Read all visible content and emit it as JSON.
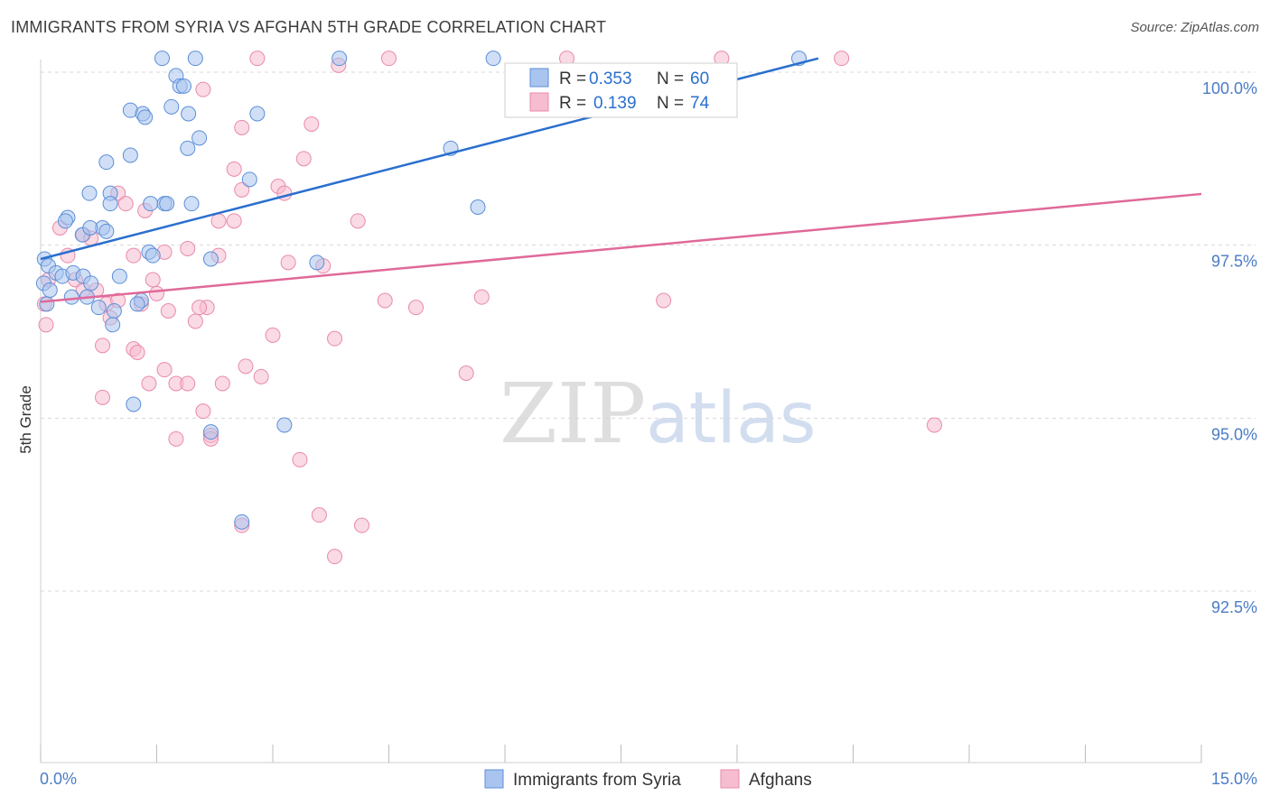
{
  "header": {
    "title": "IMMIGRANTS FROM SYRIA VS AFGHAN 5TH GRADE CORRELATION CHART",
    "source": "Source: ZipAtlas.com"
  },
  "watermark": {
    "zip": "ZIP",
    "atlas": "atlas"
  },
  "colors": {
    "syria_fill": "#a9c4ee",
    "syria_stroke": "#5b8fd8",
    "syria_line": "#2a6fcf",
    "afghan_fill": "#f6bcd0",
    "afghan_stroke": "#e98aab",
    "afghan_line": "#e0699a",
    "grid": "#d8d8d8",
    "tick_text": "#4a7cc7"
  },
  "legend": {
    "r_label": "R = ",
    "n_label": "N = ",
    "entries": [
      {
        "r": "0.353",
        "n": "60"
      },
      {
        "r": "0.139",
        "n": "74"
      }
    ]
  },
  "chart_data": {
    "type": "scatter",
    "title": "IMMIGRANTS FROM SYRIA VS AFGHAN 5TH GRADE CORRELATION CHART",
    "xlabel": "",
    "ylabel": "5th Grade",
    "xlim": [
      0,
      15
    ],
    "ylim": [
      90.0,
      100.25
    ],
    "x_tick_labels": [
      "0.0%",
      "15.0%"
    ],
    "y_ticks": [
      92.5,
      95.0,
      97.5,
      100.0
    ],
    "y_tick_labels": [
      "92.5%",
      "95.0%",
      "97.5%",
      "100.0%"
    ],
    "grid": true,
    "series": [
      {
        "name": "Immigrants from Syria",
        "R": 0.353,
        "N": 60,
        "trend": {
          "x": [
            0.0,
            10.05
          ],
          "y": [
            97.3,
            100.2
          ]
        },
        "points": [
          [
            1.57,
            100.2
          ],
          [
            2.0,
            100.2
          ],
          [
            3.86,
            100.2
          ],
          [
            5.85,
            100.2
          ],
          [
            9.8,
            100.2
          ],
          [
            1.75,
            99.95
          ],
          [
            1.8,
            99.8
          ],
          [
            1.85,
            99.8
          ],
          [
            1.16,
            99.45
          ],
          [
            1.32,
            99.4
          ],
          [
            1.35,
            99.35
          ],
          [
            1.69,
            99.5
          ],
          [
            1.91,
            99.4
          ],
          [
            2.8,
            99.4
          ],
          [
            2.05,
            99.05
          ],
          [
            1.9,
            98.9
          ],
          [
            1.16,
            98.8
          ],
          [
            0.85,
            98.7
          ],
          [
            5.3,
            98.9
          ],
          [
            2.7,
            98.45
          ],
          [
            0.63,
            98.25
          ],
          [
            0.9,
            98.25
          ],
          [
            0.9,
            98.1
          ],
          [
            1.42,
            98.1
          ],
          [
            1.6,
            98.1
          ],
          [
            1.63,
            98.1
          ],
          [
            1.95,
            98.1
          ],
          [
            0.54,
            97.65
          ],
          [
            0.8,
            97.75
          ],
          [
            5.65,
            98.05
          ],
          [
            0.35,
            97.9
          ],
          [
            0.32,
            97.85
          ],
          [
            0.64,
            97.75
          ],
          [
            0.85,
            97.7
          ],
          [
            1.4,
            97.4
          ],
          [
            1.45,
            97.35
          ],
          [
            2.2,
            97.3
          ],
          [
            3.57,
            97.25
          ],
          [
            0.05,
            97.3
          ],
          [
            0.1,
            97.2
          ],
          [
            0.2,
            97.1
          ],
          [
            0.28,
            97.05
          ],
          [
            0.42,
            97.1
          ],
          [
            0.55,
            97.05
          ],
          [
            0.65,
            96.95
          ],
          [
            1.02,
            97.05
          ],
          [
            0.04,
            96.95
          ],
          [
            0.12,
            96.85
          ],
          [
            0.4,
            96.75
          ],
          [
            0.6,
            96.75
          ],
          [
            0.75,
            96.6
          ],
          [
            0.95,
            96.55
          ],
          [
            1.3,
            96.7
          ],
          [
            0.08,
            96.65
          ],
          [
            0.93,
            96.35
          ],
          [
            1.2,
            95.2
          ],
          [
            3.15,
            94.9
          ],
          [
            2.2,
            94.8
          ],
          [
            2.6,
            93.5
          ],
          [
            1.25,
            96.65
          ]
        ]
      },
      {
        "name": "Afghans",
        "R": 0.139,
        "N": 74,
        "trend": {
          "x": [
            0.0,
            15.0
          ],
          "y": [
            96.68,
            98.24
          ]
        },
        "points": [
          [
            2.8,
            100.2
          ],
          [
            4.5,
            100.2
          ],
          [
            6.8,
            100.2
          ],
          [
            8.8,
            100.2
          ],
          [
            10.35,
            100.2
          ],
          [
            3.85,
            100.1
          ],
          [
            2.1,
            99.75
          ],
          [
            3.5,
            99.25
          ],
          [
            2.6,
            99.2
          ],
          [
            3.4,
            98.75
          ],
          [
            2.5,
            98.6
          ],
          [
            3.07,
            98.35
          ],
          [
            2.6,
            98.3
          ],
          [
            3.15,
            98.25
          ],
          [
            1.0,
            98.25
          ],
          [
            1.1,
            98.1
          ],
          [
            1.35,
            98.0
          ],
          [
            2.3,
            97.85
          ],
          [
            2.5,
            97.85
          ],
          [
            4.1,
            97.85
          ],
          [
            0.25,
            97.75
          ],
          [
            0.55,
            97.65
          ],
          [
            0.65,
            97.6
          ],
          [
            1.6,
            97.4
          ],
          [
            1.9,
            97.45
          ],
          [
            2.3,
            97.35
          ],
          [
            1.2,
            97.35
          ],
          [
            3.2,
            97.25
          ],
          [
            3.65,
            97.2
          ],
          [
            0.35,
            97.35
          ],
          [
            0.1,
            97.0
          ],
          [
            0.45,
            97.0
          ],
          [
            0.55,
            96.85
          ],
          [
            0.72,
            96.85
          ],
          [
            0.85,
            96.65
          ],
          [
            1.45,
            97.0
          ],
          [
            1.5,
            96.8
          ],
          [
            1.3,
            96.65
          ],
          [
            1.65,
            96.55
          ],
          [
            2.15,
            96.6
          ],
          [
            2.05,
            96.6
          ],
          [
            4.45,
            96.7
          ],
          [
            4.85,
            96.6
          ],
          [
            5.7,
            96.75
          ],
          [
            8.05,
            96.7
          ],
          [
            0.05,
            96.65
          ],
          [
            0.07,
            96.35
          ],
          [
            0.9,
            96.45
          ],
          [
            2.0,
            96.4
          ],
          [
            3.0,
            96.2
          ],
          [
            3.8,
            96.15
          ],
          [
            0.8,
            96.05
          ],
          [
            1.2,
            96.0
          ],
          [
            1.25,
            95.95
          ],
          [
            2.65,
            95.75
          ],
          [
            1.6,
            95.7
          ],
          [
            2.85,
            95.6
          ],
          [
            5.5,
            95.65
          ],
          [
            1.4,
            95.5
          ],
          [
            1.75,
            95.5
          ],
          [
            1.9,
            95.5
          ],
          [
            2.35,
            95.5
          ],
          [
            0.8,
            95.3
          ],
          [
            2.2,
            94.75
          ],
          [
            1.75,
            94.7
          ],
          [
            2.2,
            94.7
          ],
          [
            11.55,
            94.9
          ],
          [
            3.35,
            94.4
          ],
          [
            3.6,
            93.6
          ],
          [
            2.6,
            93.45
          ],
          [
            4.15,
            93.45
          ],
          [
            3.8,
            93.0
          ],
          [
            2.1,
            95.1
          ],
          [
            1.0,
            96.7
          ]
        ]
      }
    ]
  },
  "bottom_legend": [
    "Immigrants from Syria",
    "Afghans"
  ]
}
